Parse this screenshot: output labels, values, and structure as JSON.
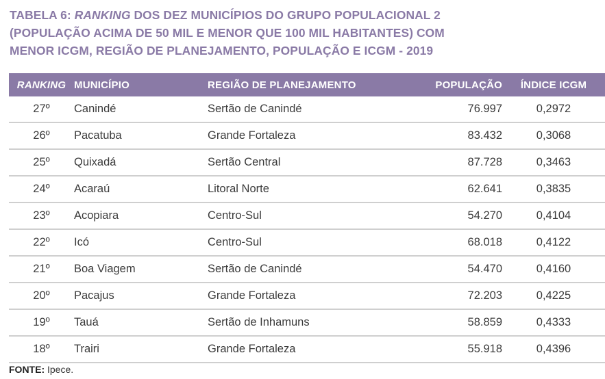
{
  "title": {
    "prefix": "TABELA 6: ",
    "italic": "RANKING",
    "line1_rest": " DOS DEZ MUNICÍPIOS DO GRUPO POPULACIONAL 2",
    "line2": "(POPULAÇÃO ACIMA DE 50 MIL E MENOR QUE 100 MIL HABITANTES) COM",
    "line3": "MENOR ICGM, REGIÃO DE PLANEJAMENTO, POPULAÇÃO E ICGM - 2019"
  },
  "table": {
    "headers": [
      "RANKING",
      "MUNICÍPIO",
      "REGIÃO DE PLANEJAMENTO",
      "POPULAÇÃO",
      "ÍNDICE ICGM"
    ],
    "header_color": "#8a7aa6",
    "rows": [
      {
        "rank": "27º",
        "municipio": "Canindé",
        "regiao": "Sertão de Canindé",
        "populacao": "76.997",
        "icgm": "0,2972"
      },
      {
        "rank": "26º",
        "municipio": "Pacatuba",
        "regiao": "Grande Fortaleza",
        "populacao": "83.432",
        "icgm": "0,3068"
      },
      {
        "rank": "25º",
        "municipio": "Quixadá",
        "regiao": "Sertão Central",
        "populacao": "87.728",
        "icgm": "0,3463"
      },
      {
        "rank": "24º",
        "municipio": "Acaraú",
        "regiao": "Litoral Norte",
        "populacao": "62.641",
        "icgm": "0,3835"
      },
      {
        "rank": "23º",
        "municipio": "Acopiara",
        "regiao": "Centro-Sul",
        "populacao": "54.270",
        "icgm": "0,4104"
      },
      {
        "rank": "22º",
        "municipio": "Icó",
        "regiao": "Centro-Sul",
        "populacao": "68.018",
        "icgm": "0,4122"
      },
      {
        "rank": "21º",
        "municipio": "Boa Viagem",
        "regiao": "Sertão de Canindé",
        "populacao": "54.470",
        "icgm": "0,4160"
      },
      {
        "rank": "20º",
        "municipio": "Pacajus",
        "regiao": "Grande Fortaleza",
        "populacao": "72.203",
        "icgm": "0,4225"
      },
      {
        "rank": "19º",
        "municipio": "Tauá",
        "regiao": "Sertão de Inhamuns",
        "populacao": "58.859",
        "icgm": "0,4333"
      },
      {
        "rank": "18º",
        "municipio": "Trairi",
        "regiao": "Grande Fortaleza",
        "populacao": "55.918",
        "icgm": "0,4396"
      }
    ]
  },
  "source": {
    "label": "FONTE:",
    "value": " Ipece."
  }
}
